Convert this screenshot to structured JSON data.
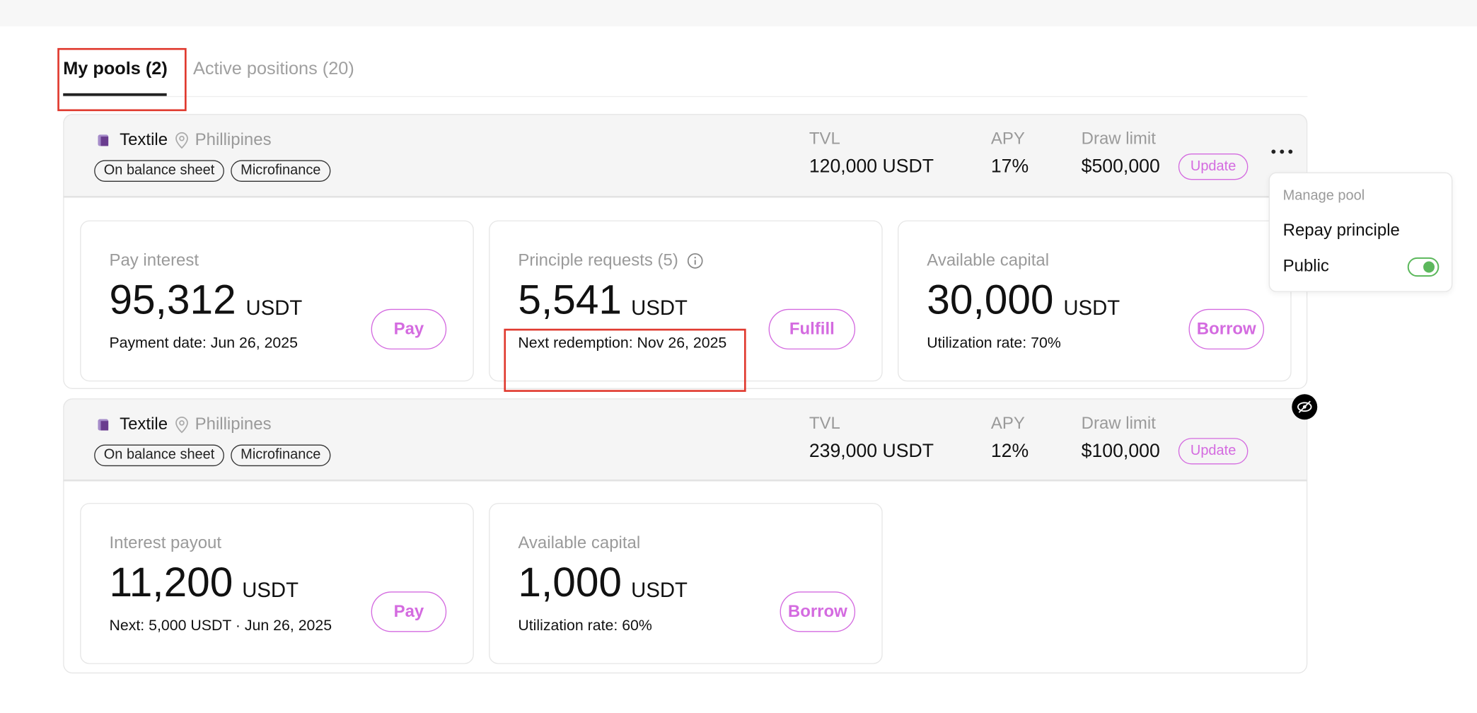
{
  "tabs": [
    {
      "label": "My pools (2)"
    },
    {
      "label": "Active positions (20)"
    }
  ],
  "pools": [
    {
      "name": "Textile",
      "location": "Phillipines",
      "tags": [
        "On balance sheet",
        "Microfinance"
      ],
      "stats": [
        {
          "label": "TVL",
          "value": "120,000 USDT"
        },
        {
          "label": "APY",
          "value": "17%"
        },
        {
          "label": "Draw limit",
          "value": "$500,000"
        }
      ],
      "update": "Update",
      "cards": [
        {
          "title": "Pay interest",
          "amount": "95,312",
          "unit": "USDT",
          "note": "Payment date: Jun 26, 2025",
          "action": "Pay"
        },
        {
          "title": "Principle requests (5)",
          "amount": "5,541",
          "unit": "USDT",
          "note": "Next redemption: Nov 26, 2025",
          "action": "Fulfill"
        },
        {
          "title": "Available capital",
          "amount": "30,000",
          "unit": "USDT",
          "note": "Utilization rate: 70%",
          "action": "Borrow"
        }
      ]
    },
    {
      "name": "Textile",
      "location": "Phillipines",
      "tags": [
        "On balance sheet",
        "Microfinance"
      ],
      "stats": [
        {
          "label": "TVL",
          "value": "239,000 USDT"
        },
        {
          "label": "APY",
          "value": "12%"
        },
        {
          "label": "Draw limit",
          "value": "$100,000"
        }
      ],
      "update": "Update",
      "cards": [
        {
          "title": "Interest payout",
          "amount": "11,200",
          "unit": "USDT",
          "note": "Next: 5,000 USDT · Jun 26, 2025",
          "action": "Pay"
        },
        {
          "title": "Available capital",
          "amount": "1,000",
          "unit": "USDT",
          "note": "Utilization rate: 60%",
          "action": "Borrow"
        }
      ]
    }
  ],
  "menu": {
    "title": "Manage pool",
    "items": [
      "Repay principle",
      "Public"
    ]
  }
}
